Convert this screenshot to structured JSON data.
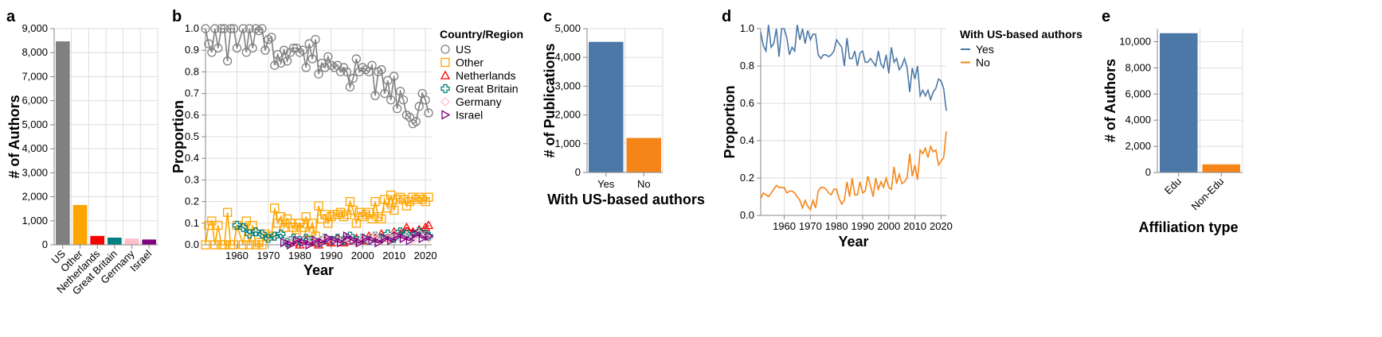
{
  "chart_data": [
    {
      "panel": "a",
      "type": "bar",
      "title": "",
      "xlabel": "",
      "ylabel": "# of Authors",
      "categories": [
        "US",
        "Other",
        "Netherlands",
        "Great Britain",
        "Germany",
        "Israel"
      ],
      "values": [
        8470,
        1660,
        370,
        300,
        260,
        220
      ],
      "colors": [
        "#808080",
        "#ffa500",
        "#ff0000",
        "#008080",
        "#ffc0cb",
        "#800080"
      ],
      "ylim": [
        0,
        9000
      ],
      "yticks": [
        0,
        1000,
        2000,
        3000,
        4000,
        5000,
        6000,
        7000,
        8000,
        9000
      ],
      "grid": true
    },
    {
      "panel": "b",
      "type": "line",
      "title": "",
      "xlabel": "Year",
      "ylabel": "Proportion",
      "legend_title": "Country/Region",
      "legend_position": "right",
      "xlim": [
        1950,
        2022
      ],
      "ylim": [
        0,
        1
      ],
      "xticks": [
        1960,
        1970,
        1980,
        1990,
        2000,
        2010,
        2020
      ],
      "yticks": [
        0,
        0.1,
        0.2,
        0.3,
        0.4,
        0.5,
        0.6,
        0.7,
        0.8,
        0.9,
        1.0
      ],
      "grid": true,
      "series": [
        {
          "name": "US",
          "color": "#808080",
          "marker": "circle",
          "x": [
            1950,
            1951,
            1952,
            1953,
            1954,
            1955,
            1956,
            1957,
            1958,
            1959,
            1960,
            1962,
            1963,
            1964,
            1965,
            1966,
            1967,
            1968,
            1969,
            1970,
            1971,
            1972,
            1973,
            1974,
            1975,
            1976,
            1977,
            1978,
            1979,
            1980,
            1981,
            1982,
            1983,
            1984,
            1985,
            1986,
            1987,
            1988,
            1989,
            1990,
            1991,
            1992,
            1993,
            1994,
            1995,
            1996,
            1997,
            1998,
            1999,
            2000,
            2001,
            2002,
            2003,
            2004,
            2005,
            2006,
            2007,
            2008,
            2009,
            2010,
            2011,
            2012,
            2013,
            2014,
            2015,
            2016,
            2017,
            2018,
            2019,
            2020,
            2021
          ],
          "y": [
            1.0,
            0.93,
            0.89,
            1.0,
            0.91,
            1.0,
            1.0,
            0.85,
            1.0,
            1.0,
            0.91,
            1.0,
            0.89,
            1.0,
            0.91,
            1.0,
            0.99,
            1.0,
            0.9,
            0.95,
            0.96,
            0.83,
            0.88,
            0.84,
            0.9,
            0.85,
            0.89,
            0.91,
            0.91,
            0.89,
            0.9,
            0.82,
            0.93,
            0.86,
            0.95,
            0.79,
            0.84,
            0.82,
            0.87,
            0.83,
            0.82,
            0.83,
            0.8,
            0.82,
            0.8,
            0.73,
            0.77,
            0.86,
            0.8,
            0.82,
            0.81,
            0.8,
            0.83,
            0.69,
            0.8,
            0.81,
            0.7,
            0.76,
            0.67,
            0.78,
            0.63,
            0.71,
            0.67,
            0.6,
            0.59,
            0.56,
            0.57,
            0.64,
            0.7,
            0.67,
            0.61
          ]
        },
        {
          "name": "Other",
          "color": "#ffa500",
          "marker": "square",
          "x": [
            1950,
            1951,
            1952,
            1953,
            1954,
            1955,
            1956,
            1957,
            1958,
            1959,
            1960,
            1962,
            1963,
            1964,
            1965,
            1966,
            1967,
            1968,
            1969,
            1970,
            1971,
            1972,
            1973,
            1974,
            1975,
            1976,
            1977,
            1978,
            1979,
            1980,
            1981,
            1982,
            1983,
            1984,
            1985,
            1986,
            1987,
            1988,
            1989,
            1990,
            1991,
            1992,
            1993,
            1994,
            1995,
            1996,
            1997,
            1998,
            1999,
            2000,
            2001,
            2002,
            2003,
            2004,
            2005,
            2006,
            2007,
            2008,
            2009,
            2010,
            2011,
            2012,
            2013,
            2014,
            2015,
            2016,
            2017,
            2018,
            2019,
            2020,
            2021
          ],
          "y": [
            0.0,
            0.09,
            0.11,
            0.0,
            0.09,
            0.0,
            0.0,
            0.15,
            0.0,
            0.0,
            0.09,
            0.0,
            0.11,
            0.0,
            0.09,
            0.0,
            0.01,
            0.0,
            0.05,
            0.04,
            0.04,
            0.17,
            0.1,
            0.13,
            0.08,
            0.12,
            0.1,
            0.08,
            0.07,
            0.1,
            0.08,
            0.13,
            0.06,
            0.1,
            0.04,
            0.18,
            0.12,
            0.14,
            0.1,
            0.13,
            0.14,
            0.14,
            0.15,
            0.13,
            0.14,
            0.2,
            0.16,
            0.1,
            0.15,
            0.13,
            0.14,
            0.15,
            0.12,
            0.2,
            0.13,
            0.12,
            0.21,
            0.17,
            0.23,
            0.16,
            0.21,
            0.22,
            0.21,
            0.18,
            0.2,
            0.22,
            0.21,
            0.22,
            0.21,
            0.2,
            0.22
          ]
        },
        {
          "name": "Netherlands",
          "color": "#ff0000",
          "marker": "triangle",
          "x": [
            1978,
            1980,
            1982,
            1984,
            1986,
            1988,
            1990,
            1992,
            1994,
            1996,
            1998,
            2000,
            2002,
            2004,
            2006,
            2008,
            2010,
            2012,
            2014,
            2016,
            2018,
            2020,
            2021
          ],
          "y": [
            0.01,
            0.0,
            0.02,
            0.01,
            0.0,
            0.02,
            0.01,
            0.03,
            0.01,
            0.02,
            0.03,
            0.02,
            0.04,
            0.03,
            0.05,
            0.03,
            0.06,
            0.05,
            0.08,
            0.06,
            0.07,
            0.08,
            0.09
          ]
        },
        {
          "name": "Great Britain",
          "color": "#008080",
          "marker": "cross",
          "x": [
            1960,
            1962,
            1964,
            1966,
            1968,
            1970,
            1972,
            1974,
            1976,
            1978,
            1980,
            1982,
            1984,
            1986,
            1988,
            1990,
            1992,
            1994,
            1996,
            1998,
            2000,
            2002,
            2004,
            2006,
            2008,
            2010,
            2012,
            2014,
            2016,
            2018,
            2020,
            2021
          ],
          "y": [
            0.09,
            0.08,
            0.05,
            0.06,
            0.05,
            0.03,
            0.04,
            0.05,
            0.01,
            0.03,
            0.02,
            0.03,
            0.02,
            0.01,
            0.03,
            0.02,
            0.03,
            0.02,
            0.04,
            0.02,
            0.03,
            0.02,
            0.04,
            0.03,
            0.05,
            0.03,
            0.06,
            0.05,
            0.04,
            0.06,
            0.05,
            0.04
          ]
        },
        {
          "name": "Germany",
          "color": "#ffc0cb",
          "marker": "diamond",
          "x": [
            1976,
            1978,
            1980,
            1982,
            1984,
            1986,
            1988,
            1990,
            1992,
            1994,
            1996,
            1998,
            2000,
            2002,
            2004,
            2006,
            2008,
            2010,
            2012,
            2014,
            2016,
            2018,
            2020,
            2021
          ],
          "y": [
            0.02,
            0.01,
            0.03,
            0.0,
            0.02,
            0.01,
            0.03,
            0.02,
            0.01,
            0.03,
            0.02,
            0.01,
            0.03,
            0.02,
            0.04,
            0.02,
            0.03,
            0.05,
            0.03,
            0.04,
            0.02,
            0.05,
            0.04,
            0.03
          ]
        },
        {
          "name": "Israel",
          "color": "#800080",
          "marker": "triangle-right",
          "x": [
            1975,
            1977,
            1979,
            1981,
            1983,
            1985,
            1987,
            1989,
            1991,
            1993,
            1995,
            1997,
            1999,
            2001,
            2003,
            2005,
            2007,
            2009,
            2011,
            2013,
            2015,
            2017,
            2019,
            2021
          ],
          "y": [
            0.01,
            0.0,
            0.02,
            0.01,
            0.0,
            0.02,
            0.01,
            0.03,
            0.02,
            0.01,
            0.04,
            0.02,
            0.01,
            0.03,
            0.02,
            0.01,
            0.03,
            0.02,
            0.04,
            0.03,
            0.02,
            0.05,
            0.03,
            0.04
          ]
        }
      ]
    },
    {
      "panel": "c",
      "type": "bar",
      "title": "",
      "xlabel": "With US-based authors",
      "ylabel": "# of Publications",
      "categories": [
        "Yes",
        "No"
      ],
      "values": [
        4540,
        1200
      ],
      "colors": [
        "#4c78a8",
        "#f58518"
      ],
      "ylim": [
        0,
        5000
      ],
      "yticks": [
        0,
        1000,
        2000,
        3000,
        4000,
        5000
      ],
      "grid": true
    },
    {
      "panel": "d",
      "type": "line",
      "title": "",
      "xlabel": "Year",
      "ylabel": "Proportion",
      "legend_title": "With US-based authors",
      "legend_position": "right",
      "xlim": [
        1951,
        2022
      ],
      "ylim": [
        0,
        1
      ],
      "xticks": [
        1960,
        1970,
        1980,
        1990,
        2000,
        2010,
        2020
      ],
      "yticks": [
        0.0,
        0.2,
        0.4,
        0.6,
        0.8,
        1.0
      ],
      "grid": true,
      "series": [
        {
          "name": "Yes",
          "color": "#4c78a8",
          "x": [
            1951,
            1952,
            1953,
            1954,
            1955,
            1956,
            1957,
            1958,
            1959,
            1960,
            1961,
            1962,
            1963,
            1964,
            1965,
            1966,
            1967,
            1968,
            1969,
            1970,
            1971,
            1972,
            1973,
            1974,
            1975,
            1976,
            1977,
            1978,
            1979,
            1980,
            1981,
            1982,
            1983,
            1984,
            1985,
            1986,
            1987,
            1988,
            1989,
            1990,
            1991,
            1992,
            1993,
            1994,
            1995,
            1996,
            1997,
            1998,
            1999,
            2000,
            2001,
            2002,
            2003,
            2004,
            2005,
            2006,
            2007,
            2008,
            2009,
            2010,
            2011,
            2012,
            2013,
            2014,
            2015,
            2016,
            2017,
            2018,
            2019,
            2020,
            2021,
            2022
          ],
          "y": [
            0.98,
            0.91,
            0.88,
            1.02,
            0.9,
            0.92,
            1.0,
            0.85,
            1.0,
            1.0,
            0.95,
            0.86,
            0.9,
            0.88,
            1.02,
            0.94,
            1.0,
            0.92,
            0.99,
            0.94,
            0.97,
            0.97,
            0.86,
            0.84,
            0.86,
            0.86,
            0.85,
            0.86,
            0.88,
            0.94,
            0.92,
            0.9,
            0.8,
            0.95,
            0.84,
            0.84,
            0.88,
            0.8,
            0.87,
            0.88,
            0.82,
            0.82,
            0.84,
            0.82,
            0.8,
            0.88,
            0.81,
            0.79,
            0.86,
            0.76,
            0.9,
            0.82,
            0.84,
            0.78,
            0.8,
            0.84,
            0.79,
            0.66,
            0.79,
            0.73,
            0.8,
            0.64,
            0.67,
            0.64,
            0.67,
            0.62,
            0.66,
            0.68,
            0.73,
            0.72,
            0.68,
            0.56
          ]
        },
        {
          "name": "No",
          "color": "#f58518",
          "x": [
            1951,
            1952,
            1953,
            1954,
            1955,
            1956,
            1957,
            1958,
            1959,
            1960,
            1961,
            1962,
            1963,
            1964,
            1965,
            1966,
            1967,
            1968,
            1969,
            1970,
            1971,
            1972,
            1973,
            1974,
            1975,
            1976,
            1977,
            1978,
            1979,
            1980,
            1981,
            1982,
            1983,
            1984,
            1985,
            1986,
            1987,
            1988,
            1989,
            1990,
            1991,
            1992,
            1993,
            1994,
            1995,
            1996,
            1997,
            1998,
            1999,
            2000,
            2001,
            2002,
            2003,
            2004,
            2005,
            2006,
            2007,
            2008,
            2009,
            2010,
            2011,
            2012,
            2013,
            2014,
            2015,
            2016,
            2017,
            2018,
            2019,
            2020,
            2021,
            2022
          ],
          "y": [
            0.09,
            0.12,
            0.11,
            0.1,
            0.12,
            0.14,
            0.16,
            0.15,
            0.15,
            0.15,
            0.12,
            0.13,
            0.13,
            0.12,
            0.1,
            0.08,
            0.04,
            0.08,
            0.05,
            0.03,
            0.08,
            0.04,
            0.13,
            0.15,
            0.15,
            0.14,
            0.12,
            0.11,
            0.14,
            0.14,
            0.09,
            0.06,
            0.08,
            0.18,
            0.1,
            0.2,
            0.11,
            0.11,
            0.18,
            0.12,
            0.13,
            0.21,
            0.16,
            0.1,
            0.2,
            0.14,
            0.18,
            0.15,
            0.2,
            0.15,
            0.14,
            0.26,
            0.17,
            0.22,
            0.17,
            0.18,
            0.2,
            0.33,
            0.21,
            0.27,
            0.19,
            0.35,
            0.33,
            0.36,
            0.31,
            0.37,
            0.34,
            0.35,
            0.27,
            0.29,
            0.31,
            0.45
          ]
        }
      ]
    },
    {
      "panel": "e",
      "type": "bar",
      "title": "",
      "xlabel": "Affiliation type",
      "ylabel": "# of Authors",
      "categories": [
        "Edu",
        "Non-Edu"
      ],
      "values": [
        10650,
        620
      ],
      "colors": [
        "#4c78a8",
        "#f58518"
      ],
      "ylim": [
        0,
        11000
      ],
      "yticks": [
        0,
        2000,
        4000,
        6000,
        8000,
        10000
      ],
      "grid": true
    }
  ]
}
